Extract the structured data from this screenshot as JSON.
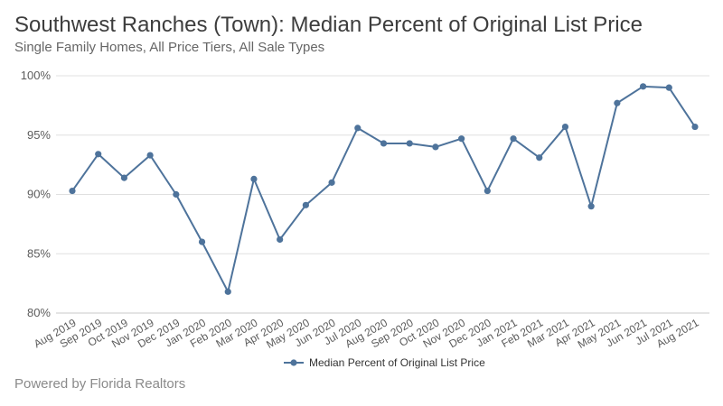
{
  "title": "Southwest Ranches (Town): Median Percent of Original List Price",
  "subtitle": "Single Family Homes, All Price Tiers, All Sale Types",
  "footer": "Powered by Florida Realtors",
  "colors": {
    "line": "#4e739b",
    "grid": "#e0e0e0",
    "axis": "#c8c8c8"
  },
  "chart_data": {
    "type": "line",
    "title": "Southwest Ranches (Town): Median Percent of Original List Price",
    "xlabel": "",
    "ylabel": "",
    "ylim": [
      80,
      100
    ],
    "yticks": [
      80,
      85,
      90,
      95,
      100
    ],
    "ytick_labels": [
      "80%",
      "85%",
      "90%",
      "95%",
      "100%"
    ],
    "grid": true,
    "legend_position": "bottom",
    "categories": [
      "Aug 2019",
      "Sep 2019",
      "Oct 2019",
      "Nov 2019",
      "Dec 2019",
      "Jan 2020",
      "Feb 2020",
      "Mar 2020",
      "Apr 2020",
      "May 2020",
      "Jun 2020",
      "Jul 2020",
      "Aug 2020",
      "Sep 2020",
      "Oct 2020",
      "Nov 2020",
      "Dec 2020",
      "Jan 2021",
      "Feb 2021",
      "Mar 2021",
      "Apr 2021",
      "May 2021",
      "Jun 2021",
      "Jul 2021",
      "Aug 2021"
    ],
    "series": [
      {
        "name": "Median Percent of Original List Price",
        "values": [
          90.3,
          93.4,
          91.4,
          93.3,
          90.0,
          86.0,
          81.8,
          91.3,
          86.2,
          89.1,
          91.0,
          95.6,
          94.3,
          94.3,
          94.0,
          94.7,
          90.3,
          94.7,
          93.1,
          95.7,
          89.0,
          97.7,
          99.1,
          99.0,
          95.7
        ]
      }
    ]
  }
}
